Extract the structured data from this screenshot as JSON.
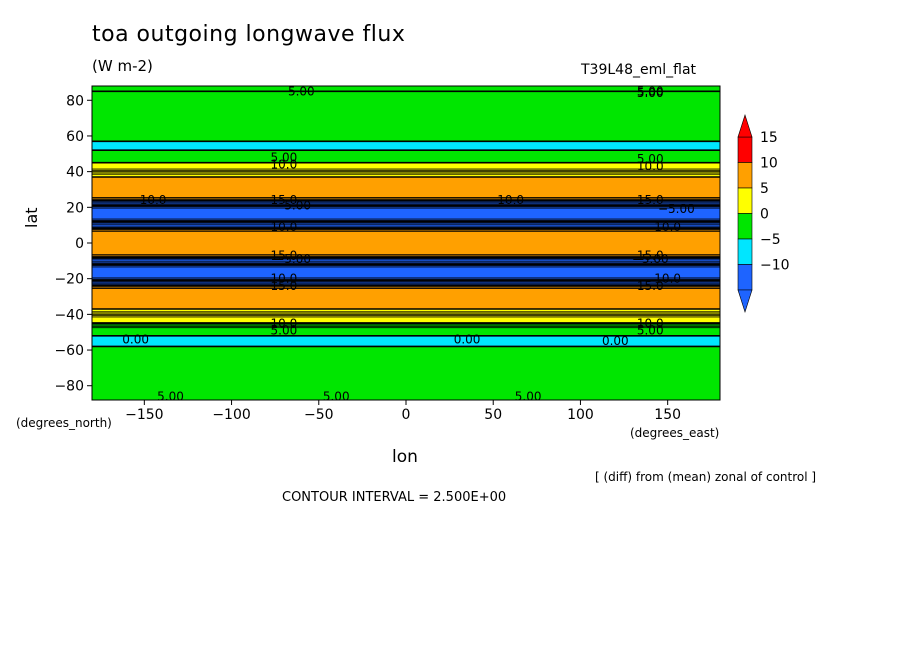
{
  "chart_data": {
    "type": "heatmap",
    "title": "toa outgoing longwave flux",
    "units": "(W m-2)",
    "run_label": "T39L48_eml_flat",
    "xlabel": "lon",
    "ylabel": "lat",
    "x_units": "(degrees_east)",
    "y_units": "(degrees_north)",
    "xlim": [
      -180,
      180
    ],
    "ylim": [
      -88,
      88
    ],
    "x_ticks": [
      -150,
      -100,
      -50,
      0,
      50,
      100,
      150
    ],
    "x_tick_labels": [
      "−150",
      "−100",
      "−50",
      "0",
      "50",
      "100",
      "150"
    ],
    "y_ticks": [
      80,
      60,
      40,
      20,
      0,
      -20,
      -40,
      -60,
      -80
    ],
    "y_tick_labels": [
      "80",
      "60",
      "40",
      "20",
      "0",
      "−20",
      "−40",
      "−60",
      "−80"
    ],
    "colorbar": {
      "levels": [
        -10,
        -5,
        0,
        5,
        10,
        15
      ],
      "level_labels": [
        "−10",
        "−5",
        "0",
        "5",
        "10",
        "15"
      ],
      "colors": [
        "#1e64ff",
        "#00e6ff",
        "#00e600",
        "#ffff00",
        "#ffa000",
        "#ff0000"
      ]
    },
    "zonal_bands": [
      {
        "lat_min": 85,
        "lat_max": 88,
        "value": 2.5
      },
      {
        "lat_min": 57,
        "lat_max": 85,
        "value": 2.5
      },
      {
        "lat_min": 52,
        "lat_max": 57,
        "value": -1
      },
      {
        "lat_min": 45,
        "lat_max": 52,
        "value": 2
      },
      {
        "lat_min": 37,
        "lat_max": 45,
        "value": 7
      },
      {
        "lat_min": 24,
        "lat_max": 37,
        "value": 12
      },
      {
        "lat_min": 21,
        "lat_max": 24,
        "value": -12
      },
      {
        "lat_min": 12,
        "lat_max": 21,
        "value": -12
      },
      {
        "lat_min": 8,
        "lat_max": 12,
        "value": -8
      },
      {
        "lat_min": -8,
        "lat_max": 8,
        "value": 12
      },
      {
        "lat_min": -12,
        "lat_max": -8,
        "value": -8
      },
      {
        "lat_min": -21,
        "lat_max": -12,
        "value": -12
      },
      {
        "lat_min": -24,
        "lat_max": -21,
        "value": -12
      },
      {
        "lat_min": -37,
        "lat_max": -24,
        "value": 12
      },
      {
        "lat_min": -45,
        "lat_max": -37,
        "value": 7
      },
      {
        "lat_min": -52,
        "lat_max": -45,
        "value": 2
      },
      {
        "lat_min": -58,
        "lat_max": -52,
        "value": -1
      },
      {
        "lat_min": -88,
        "lat_max": -58,
        "value": 2.5
      }
    ],
    "contour_labels": [
      {
        "text": "5.00",
        "lon": -60,
        "lat": 85
      },
      {
        "text": "5.00",
        "lon": 140,
        "lat": 85
      },
      {
        "text": "5.00",
        "lon": 140,
        "lat": 84
      },
      {
        "text": "5.00",
        "lon": -70,
        "lat": 48
      },
      {
        "text": "5.00",
        "lon": 140,
        "lat": 47
      },
      {
        "text": "10.0",
        "lon": -70,
        "lat": 44
      },
      {
        "text": "10.0",
        "lon": 140,
        "lat": 43
      },
      {
        "text": "10.0",
        "lon": -145,
        "lat": 24
      },
      {
        "text": "10.0",
        "lon": 60,
        "lat": 24
      },
      {
        "text": "15.0",
        "lon": -70,
        "lat": 24
      },
      {
        "text": "15.0",
        "lon": 140,
        "lat": 24
      },
      {
        "text": "−5.00",
        "lon": -65,
        "lat": 21
      },
      {
        "text": "−5.00",
        "lon": 155,
        "lat": 19
      },
      {
        "text": "10.0",
        "lon": -70,
        "lat": 9
      },
      {
        "text": "10.0",
        "lon": 150,
        "lat": 9
      },
      {
        "text": "15.0",
        "lon": -70,
        "lat": -7
      },
      {
        "text": "15.0",
        "lon": 140,
        "lat": -7
      },
      {
        "text": "−5.00",
        "lon": -65,
        "lat": -9
      },
      {
        "text": "−5.00",
        "lon": 140,
        "lat": -9
      },
      {
        "text": "10.0",
        "lon": -70,
        "lat": -20
      },
      {
        "text": "10.0",
        "lon": 150,
        "lat": -20
      },
      {
        "text": "15.0",
        "lon": -70,
        "lat": -24
      },
      {
        "text": "15.0",
        "lon": 140,
        "lat": -24
      },
      {
        "text": "10.0",
        "lon": -70,
        "lat": -45
      },
      {
        "text": "10.0",
        "lon": 140,
        "lat": -45
      },
      {
        "text": "5.00",
        "lon": -70,
        "lat": -49
      },
      {
        "text": "5.00",
        "lon": 140,
        "lat": -49
      },
      {
        "text": "0.00",
        "lon": -155,
        "lat": -54
      },
      {
        "text": "0.00",
        "lon": 35,
        "lat": -54
      },
      {
        "text": "0.00",
        "lon": 120,
        "lat": -55
      },
      {
        "text": "5.00",
        "lon": -135,
        "lat": -86
      },
      {
        "text": "5.00",
        "lon": -40,
        "lat": -86
      },
      {
        "text": "5.00",
        "lon": 70,
        "lat": -86
      }
    ],
    "grid": false,
    "legend": "right"
  },
  "annotations": {
    "note": "[ (diff) from (mean) zonal of control ]",
    "contour_interval": "CONTOUR INTERVAL = 2.500E+00"
  }
}
